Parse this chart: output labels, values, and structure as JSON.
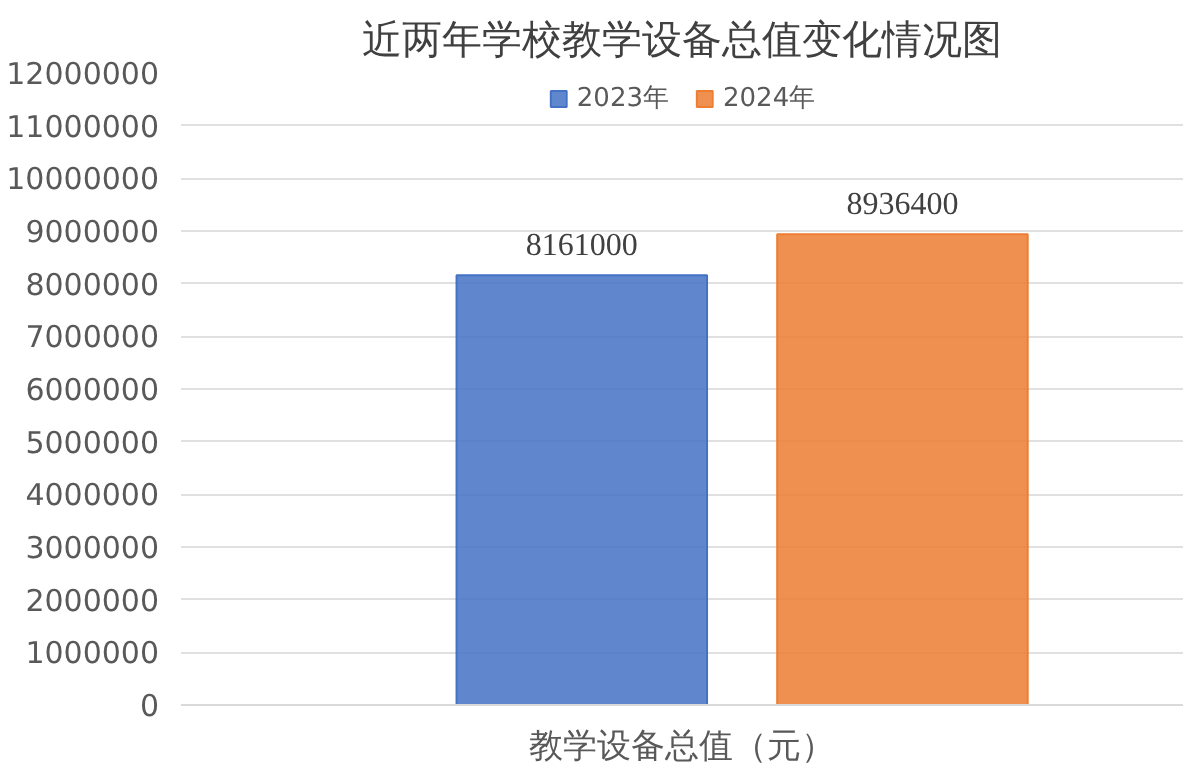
{
  "chart_data": {
    "type": "bar",
    "title": "近两年学校教学设备总值变化情况图",
    "categories": [
      "教学设备总值（元）"
    ],
    "series": [
      {
        "name": "2023年",
        "color": "#4472c4",
        "values": [
          8161000
        ]
      },
      {
        "name": "2024年",
        "color": "#ed7d31",
        "values": [
          8936400
        ]
      }
    ],
    "ylim": [
      0,
      12000000
    ],
    "yticks": [
      0,
      1000000,
      2000000,
      3000000,
      4000000,
      5000000,
      6000000,
      7000000,
      8000000,
      9000000,
      10000000,
      11000000,
      12000000
    ],
    "grid": "y",
    "legend": "top",
    "data_labels": true
  }
}
